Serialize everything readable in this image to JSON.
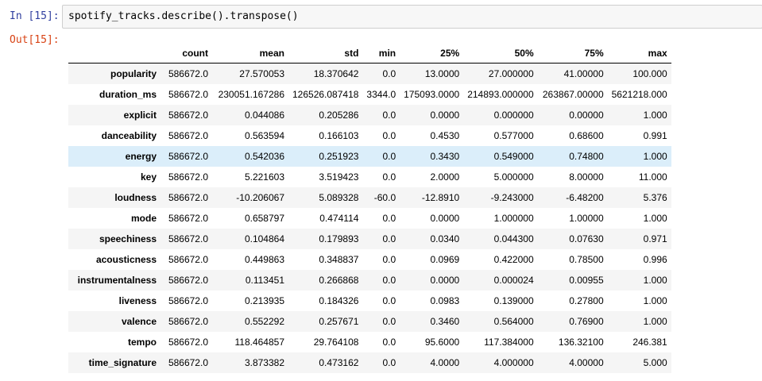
{
  "input_cell": {
    "prompt": "In [15]:",
    "code": "spotify_tracks.describe().transpose()"
  },
  "output_cell": {
    "prompt": "Out[15]:"
  },
  "table": {
    "columns": [
      "count",
      "mean",
      "std",
      "min",
      "25%",
      "50%",
      "75%",
      "max"
    ],
    "rows": [
      {
        "label": "popularity",
        "values": [
          "586672.0",
          "27.570053",
          "18.370642",
          "0.0",
          "13.0000",
          "27.000000",
          "41.00000",
          "100.000"
        ]
      },
      {
        "label": "duration_ms",
        "values": [
          "586672.0",
          "230051.167286",
          "126526.087418",
          "3344.0",
          "175093.0000",
          "214893.000000",
          "263867.00000",
          "5621218.000"
        ]
      },
      {
        "label": "explicit",
        "values": [
          "586672.0",
          "0.044086",
          "0.205286",
          "0.0",
          "0.0000",
          "0.000000",
          "0.00000",
          "1.000"
        ]
      },
      {
        "label": "danceability",
        "values": [
          "586672.0",
          "0.563594",
          "0.166103",
          "0.0",
          "0.4530",
          "0.577000",
          "0.68600",
          "0.991"
        ]
      },
      {
        "label": "energy",
        "values": [
          "586672.0",
          "0.542036",
          "0.251923",
          "0.0",
          "0.3430",
          "0.549000",
          "0.74800",
          "1.000"
        ],
        "highlighted": true
      },
      {
        "label": "key",
        "values": [
          "586672.0",
          "5.221603",
          "3.519423",
          "0.0",
          "2.0000",
          "5.000000",
          "8.00000",
          "11.000"
        ]
      },
      {
        "label": "loudness",
        "values": [
          "586672.0",
          "-10.206067",
          "5.089328",
          "-60.0",
          "-12.8910",
          "-9.243000",
          "-6.48200",
          "5.376"
        ]
      },
      {
        "label": "mode",
        "values": [
          "586672.0",
          "0.658797",
          "0.474114",
          "0.0",
          "0.0000",
          "1.000000",
          "1.00000",
          "1.000"
        ]
      },
      {
        "label": "speechiness",
        "values": [
          "586672.0",
          "0.104864",
          "0.179893",
          "0.0",
          "0.0340",
          "0.044300",
          "0.07630",
          "0.971"
        ]
      },
      {
        "label": "acousticness",
        "values": [
          "586672.0",
          "0.449863",
          "0.348837",
          "0.0",
          "0.0969",
          "0.422000",
          "0.78500",
          "0.996"
        ]
      },
      {
        "label": "instrumentalness",
        "values": [
          "586672.0",
          "0.113451",
          "0.266868",
          "0.0",
          "0.0000",
          "0.000024",
          "0.00955",
          "1.000"
        ]
      },
      {
        "label": "liveness",
        "values": [
          "586672.0",
          "0.213935",
          "0.184326",
          "0.0",
          "0.0983",
          "0.139000",
          "0.27800",
          "1.000"
        ]
      },
      {
        "label": "valence",
        "values": [
          "586672.0",
          "0.552292",
          "0.257671",
          "0.0",
          "0.3460",
          "0.564000",
          "0.76900",
          "1.000"
        ]
      },
      {
        "label": "tempo",
        "values": [
          "586672.0",
          "118.464857",
          "29.764108",
          "0.0",
          "95.6000",
          "117.384000",
          "136.32100",
          "246.381"
        ]
      },
      {
        "label": "time_signature",
        "values": [
          "586672.0",
          "3.873382",
          "0.473162",
          "0.0",
          "4.0000",
          "4.000000",
          "4.00000",
          "5.000"
        ]
      }
    ]
  },
  "colors": {
    "prompt_in": "#303F9F",
    "prompt_out": "#D84315",
    "row_stripe": "#f5f5f5",
    "row_hover": "#dbeefa"
  }
}
